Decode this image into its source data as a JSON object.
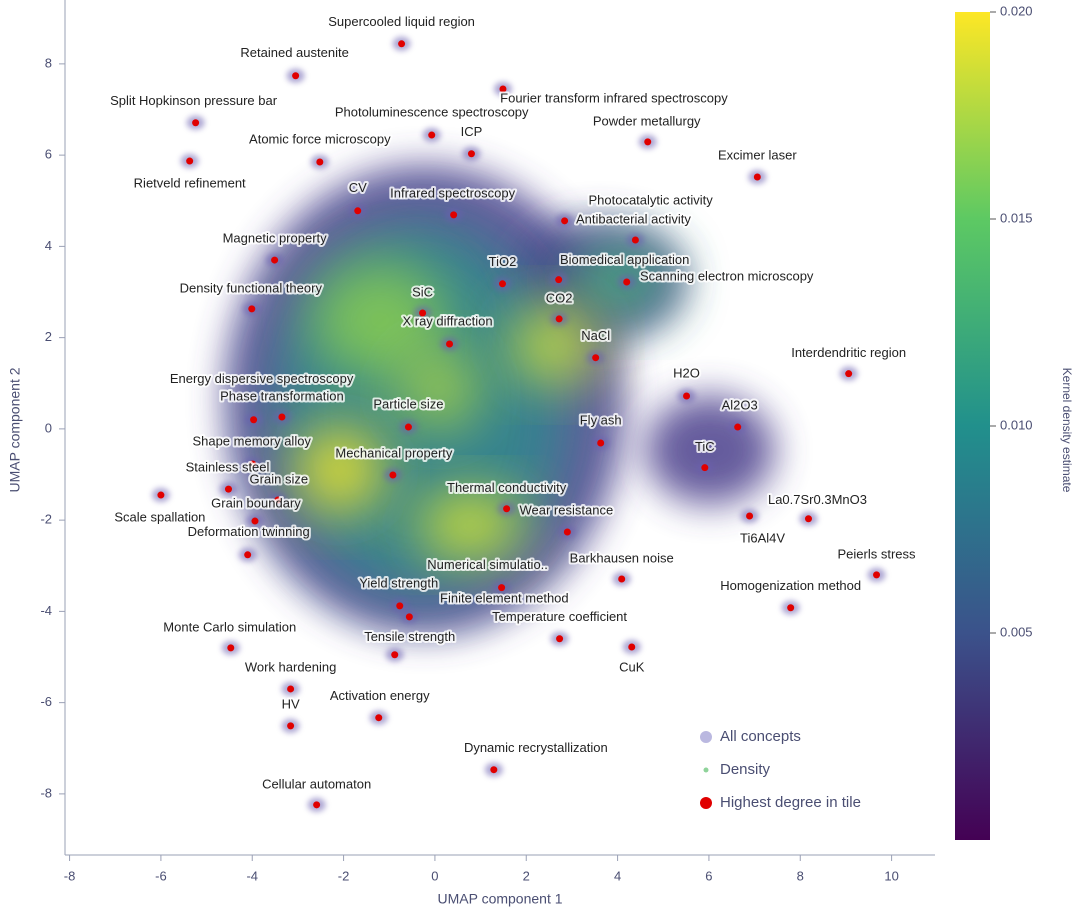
{
  "chart_data": {
    "type": "scatter",
    "xlabel": "UMAP component 1",
    "ylabel": "UMAP component 2",
    "xlim": [
      -8.1,
      10.9
    ],
    "ylim": [
      -9.3,
      9.4
    ],
    "xticks": [
      -8,
      -6,
      -4,
      -2,
      0,
      2,
      4,
      6,
      8,
      10
    ],
    "yticks": [
      -8,
      -6,
      -4,
      -2,
      0,
      2,
      4,
      6,
      8
    ],
    "colorbar": {
      "label": "Kernel density estimate",
      "lim": [
        0,
        0.02
      ],
      "ticks": [
        {
          "value": 0.005,
          "label": "0.005"
        },
        {
          "value": 0.01,
          "label": "0.010"
        },
        {
          "value": 0.015,
          "label": "0.015"
        },
        {
          "value": 0.02,
          "label": "0.020"
        }
      ]
    },
    "series": [
      {
        "name": "All concepts",
        "color": "#b3b0dd"
      },
      {
        "name": "Density",
        "color": "#8fd39a"
      },
      {
        "name": "Highest degree in tile",
        "color": "#e00000",
        "labels": [
          "Supercooled liquid region",
          "Retained austenite",
          "Split Hopkinson pressure bar",
          "Rietveld refinement",
          "Atomic force microscopy",
          "Photoluminescence spectroscopy",
          "ICP",
          "Fourier transform infrared spectroscopy",
          "Powder metallurgy",
          "Excimer laser",
          "CV",
          "Infrared spectroscopy",
          "Photocatalytic activity",
          "Antibacterial activity",
          "Magnetic property",
          "TiO2",
          "Biomedical application",
          "Scanning electron microscopy",
          "SiC",
          "CO2",
          "Density functional theory",
          "X ray diffraction",
          "NaCl",
          "Interdendritic region",
          "H2O",
          "Energy dispersive spectroscopy",
          "Phase transformation",
          "Particle size",
          "Al2O3",
          "Fly ash",
          "Shape memory alloy",
          "TiC",
          "Mechanical property",
          "Stainless steel",
          "Grain size",
          "Grain boundary",
          "Scale spallation",
          "Thermal conductivity",
          "Wear resistance",
          "La0.7Sr0.3MnO3",
          "Ti6Al4V",
          "Deformation twinning",
          "Peierls stress",
          "Numerical simulatio..",
          "Barkhausen noise",
          "Yield strength",
          "Finite element method",
          "Tensile strength",
          "Homogenization method",
          "Temperature coefficient",
          "Monte Carlo simulation",
          "CuK",
          "Work hardening",
          "HV",
          "Activation energy",
          "Dynamic recrystallization",
          "Cellular automaton"
        ],
        "x": [
          -0.73,
          -3.05,
          -5.24,
          -5.37,
          -2.52,
          -0.07,
          0.8,
          1.49,
          4.66,
          7.06,
          -1.69,
          0.41,
          2.84,
          4.39,
          -3.51,
          1.48,
          2.71,
          4.2,
          -0.27,
          2.72,
          -4.01,
          0.32,
          3.52,
          9.06,
          5.51,
          -3.97,
          -3.35,
          -0.58,
          6.63,
          3.63,
          -3.99,
          5.91,
          -0.92,
          -4.52,
          -3.44,
          -3.94,
          -6.0,
          1.57,
          2.9,
          8.18,
          6.89,
          -4.1,
          9.67,
          1.46,
          4.09,
          -0.77,
          -0.56,
          -0.88,
          7.79,
          2.73,
          -4.47,
          4.31,
          -3.16,
          -3.16,
          -1.23,
          1.29,
          -2.59
        ],
        "y": [
          8.44,
          7.74,
          6.71,
          5.87,
          5.85,
          6.44,
          6.03,
          7.45,
          6.29,
          5.52,
          4.78,
          4.69,
          4.56,
          4.14,
          3.7,
          3.18,
          3.27,
          3.22,
          2.54,
          2.41,
          2.63,
          1.86,
          1.56,
          1.21,
          0.72,
          0.2,
          0.26,
          0.04,
          0.04,
          -0.31,
          -0.77,
          -0.85,
          -1.01,
          -1.32,
          -1.56,
          -2.02,
          -1.45,
          -1.75,
          -2.26,
          -1.97,
          -1.91,
          -2.76,
          -3.2,
          -3.48,
          -3.29,
          -3.88,
          -4.12,
          -4.95,
          -3.92,
          -4.6,
          -4.8,
          -4.78,
          -5.7,
          -6.51,
          -6.33,
          -7.47,
          -8.24
        ]
      }
    ]
  }
}
